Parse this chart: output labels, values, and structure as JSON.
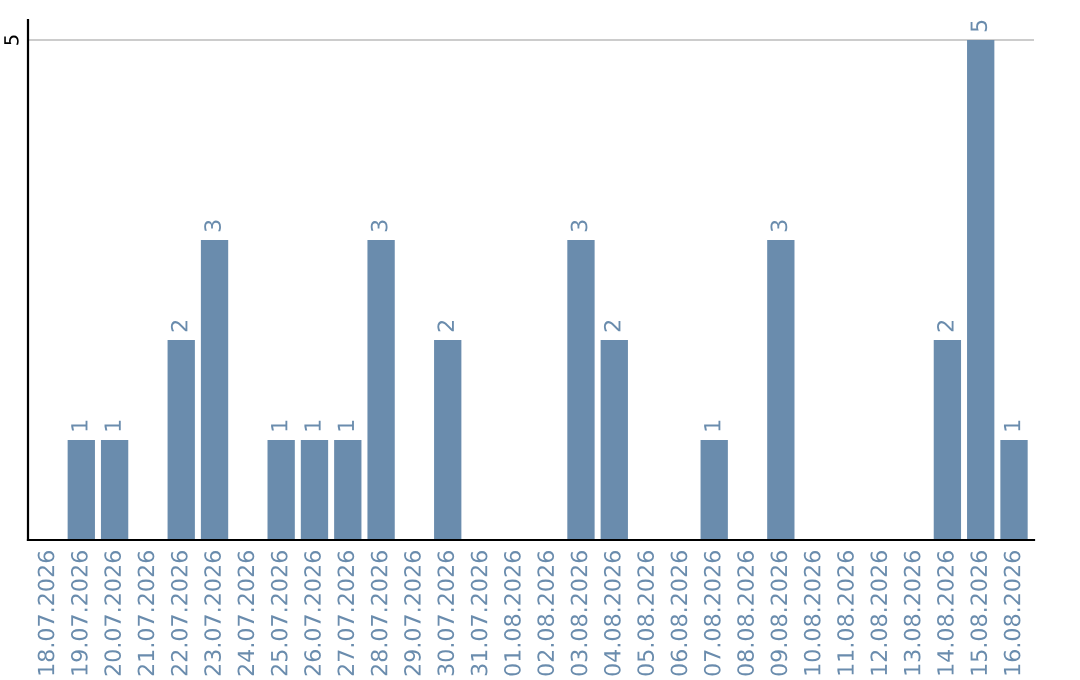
{
  "chart_data": {
    "type": "bar",
    "categories": [
      "18.07.2026",
      "19.07.2026",
      "20.07.2026",
      "21.07.2026",
      "22.07.2026",
      "23.07.2026",
      "24.07.2026",
      "25.07.2026",
      "26.07.2026",
      "27.07.2026",
      "28.07.2026",
      "29.07.2026",
      "30.07.2026",
      "31.07.2026",
      "01.08.2026",
      "02.08.2026",
      "03.08.2026",
      "04.08.2026",
      "05.08.2026",
      "06.08.2026",
      "07.08.2026",
      "08.08.2026",
      "09.08.2026",
      "10.08.2026",
      "11.08.2026",
      "12.08.2026",
      "13.08.2026",
      "14.08.2026",
      "15.08.2026",
      "16.08.2026"
    ],
    "values": [
      null,
      1,
      1,
      null,
      2,
      3,
      null,
      1,
      1,
      1,
      3,
      null,
      2,
      null,
      null,
      null,
      3,
      2,
      null,
      null,
      1,
      null,
      3,
      null,
      null,
      null,
      null,
      2,
      5,
      1
    ],
    "color": "#6a8cad",
    "ylim": [
      0,
      5.2
    ],
    "yticks": [
      5
    ],
    "grid": "y",
    "data_labels": true,
    "legend": false
  }
}
